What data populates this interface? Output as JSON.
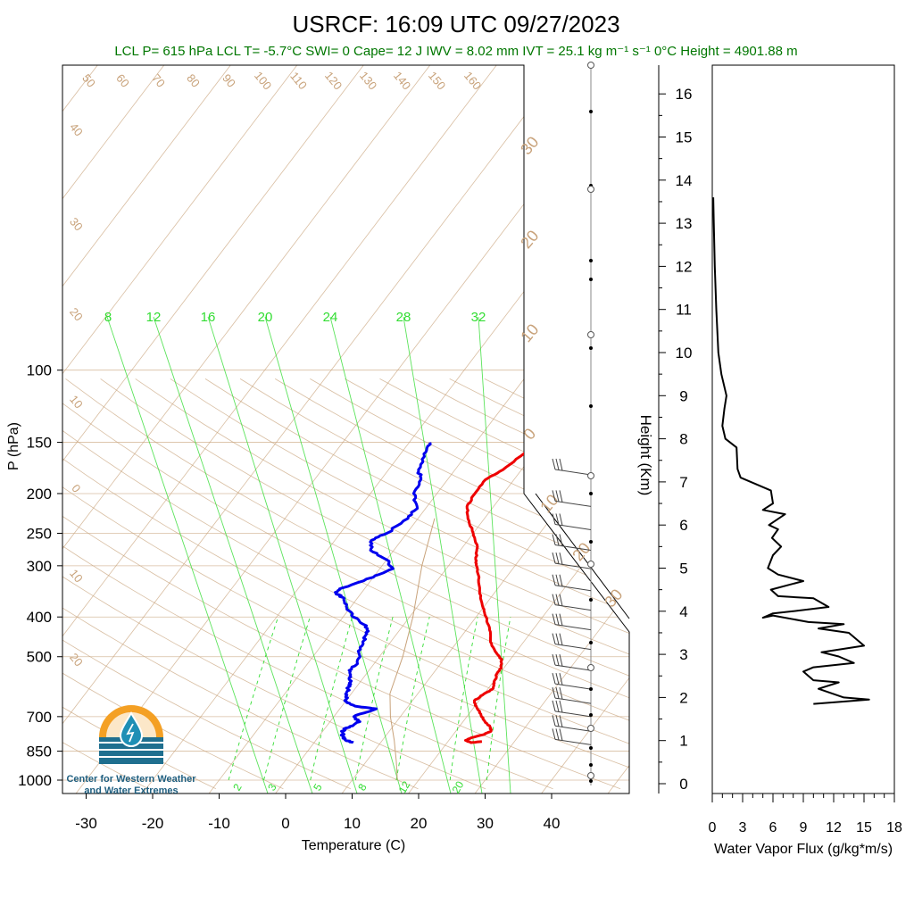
{
  "title": "USRCF: 16:09 UTC 09/27/2023",
  "subtitle": "LCL P= 615 hPa  LCL T= -5.7°C  SWI= 0  Cape= 12 J  IWV = 8.02 mm  IVT = 25.1 kg m⁻¹ s⁻¹  0°C Height = 4901.88 m",
  "colors": {
    "temperature": "#ee0000",
    "dewpoint": "#0000ee",
    "mixing_ratio": "#33dd33",
    "adiabat": "#c8a27a",
    "subtitle": "#007700"
  },
  "logo": {
    "line1": "Center for Western Weather",
    "line2": "and Water Extremes",
    "icon": "water-drop-sun-logo"
  },
  "chart_data": [
    {
      "type": "line",
      "subtype": "skew-t",
      "xlabel": "Temperature (C)",
      "ylabel": "P (hPa)",
      "x_ticks": [
        -30,
        -20,
        -10,
        0,
        10,
        20,
        30,
        40
      ],
      "y_ticks": [
        100,
        150,
        200,
        250,
        300,
        400,
        500,
        700,
        850,
        1000
      ],
      "mixing_ratio_labels_top": [
        "8",
        "12",
        "16",
        "20",
        "24",
        "28",
        "32"
      ],
      "mixing_ratio_labels_bottom": [
        "2",
        "3",
        "5",
        "8",
        "12",
        "20"
      ],
      "adiabat_labels_top": [
        "50",
        "60",
        "70",
        "80",
        "90",
        "100",
        "110",
        "120",
        "130",
        "140",
        "150",
        "160"
      ],
      "isotherm_labels_left": [
        "40",
        "30",
        "20",
        "10",
        "0",
        "10",
        "20"
      ],
      "isotherm_labels_right": [
        "30",
        "20",
        "10",
        "0",
        "10",
        "20",
        "30"
      ],
      "series": [
        {
          "name": "temperature",
          "points": [
            [
              150,
              -0.5
            ],
            [
              160,
              -1.5
            ],
            [
              175,
              -2.8
            ],
            [
              185,
              -4.3
            ],
            [
              200,
              -4.3
            ],
            [
              215,
              -4.0
            ],
            [
              230,
              -2.5
            ],
            [
              250,
              0.0
            ],
            [
              270,
              2.2
            ],
            [
              290,
              3.4
            ],
            [
              300,
              4.2
            ],
            [
              320,
              5.9
            ],
            [
              350,
              7.8
            ],
            [
              380,
              10.0
            ],
            [
              400,
              11.5
            ],
            [
              430,
              13.5
            ],
            [
              460,
              15.0
            ],
            [
              490,
              17.2
            ],
            [
              510,
              18.8
            ],
            [
              530,
              19.5
            ],
            [
              550,
              19.6
            ],
            [
              580,
              20.3
            ],
            [
              600,
              20.7
            ],
            [
              620,
              19.9
            ],
            [
              640,
              19.3
            ],
            [
              660,
              20.2
            ],
            [
              690,
              21.8
            ],
            [
              720,
              23.3
            ],
            [
              740,
              24.6
            ],
            [
              760,
              25.3
            ],
            [
              775,
              24.5
            ],
            [
              790,
              23.0
            ],
            [
              800,
              22.5
            ],
            [
              810,
              23.6
            ],
            [
              805,
              25.1
            ]
          ]
        },
        {
          "name": "dewpoint",
          "points": [
            [
              150,
              -16.9
            ],
            [
              160,
              -16.5
            ],
            [
              175,
              -15.5
            ],
            [
              185,
              -14.0
            ],
            [
              200,
              -13.5
            ],
            [
              215,
              -11.5
            ],
            [
              230,
              -11.5
            ],
            [
              250,
              -13.0
            ],
            [
              260,
              -14.5
            ],
            [
              275,
              -13.5
            ],
            [
              290,
              -10.0
            ],
            [
              305,
              -8.0
            ],
            [
              320,
              -10.0
            ],
            [
              340,
              -13.5
            ],
            [
              350,
              -13.8
            ],
            [
              360,
              -12.0
            ],
            [
              380,
              -10.5
            ],
            [
              400,
              -8.5
            ],
            [
              420,
              -5.5
            ],
            [
              440,
              -4.5
            ],
            [
              460,
              -4.2
            ],
            [
              490,
              -3.5
            ],
            [
              520,
              -2.5
            ],
            [
              540,
              -3.0
            ],
            [
              560,
              -2.0
            ],
            [
              580,
              -1.5
            ],
            [
              600,
              -1.0
            ],
            [
              620,
              -0.5
            ],
            [
              640,
              -0.2
            ],
            [
              660,
              2.0
            ],
            [
              670,
              5.5
            ],
            [
              700,
              3.0
            ],
            [
              720,
              4.5
            ],
            [
              740,
              3.5
            ],
            [
              760,
              2.8
            ],
            [
              780,
              3.6
            ],
            [
              800,
              4.5
            ],
            [
              810,
              5.9
            ]
          ]
        },
        {
          "name": "parcel",
          "points": [
            [
              230,
              -7.5
            ],
            [
              300,
              -4.0
            ],
            [
              400,
              0.5
            ],
            [
              500,
              3.5
            ],
            [
              615,
              5.8
            ],
            [
              700,
              8.5
            ],
            [
              800,
              11.8
            ],
            [
              900,
              14.5
            ],
            [
              1000,
              16.8
            ]
          ]
        }
      ],
      "wind_barbs_hPa": [
        180,
        215,
        245,
        275,
        305,
        345,
        385,
        430,
        480,
        540,
        600,
        650,
        700,
        760,
        820
      ],
      "height_axis_km": [
        0,
        1,
        2,
        3,
        4,
        5,
        6,
        7,
        8,
        9,
        10,
        11,
        12,
        13,
        14,
        15,
        16
      ]
    },
    {
      "type": "line",
      "xlabel": "Water Vapor Flux (g/kg*m/s)",
      "ylabel": "Height (Km)",
      "x_ticks": [
        0,
        3,
        6,
        9,
        12,
        15,
        18
      ],
      "y_ticks": [
        0,
        1,
        2,
        3,
        4,
        5,
        6,
        7,
        8,
        9,
        10,
        11,
        12,
        13,
        14,
        15,
        16
      ],
      "xlim": [
        0,
        18
      ],
      "ylim": [
        -0.3,
        16.5
      ],
      "series": [
        {
          "name": "water_vapor_flux",
          "points": [
            [
              10.0,
              1.85
            ],
            [
              15.5,
              1.95
            ],
            [
              13.0,
              2.0
            ],
            [
              10.5,
              2.2
            ],
            [
              12.5,
              2.35
            ],
            [
              10.0,
              2.4
            ],
            [
              9.0,
              2.6
            ],
            [
              10.0,
              2.7
            ],
            [
              14.0,
              2.8
            ],
            [
              12.5,
              2.95
            ],
            [
              10.8,
              3.05
            ],
            [
              15.0,
              3.2
            ],
            [
              13.5,
              3.5
            ],
            [
              10.5,
              3.6
            ],
            [
              13.0,
              3.7
            ],
            [
              9.5,
              3.75
            ],
            [
              6.0,
              3.9
            ],
            [
              5.0,
              3.85
            ],
            [
              6.0,
              3.95
            ],
            [
              8.0,
              4.0
            ],
            [
              11.5,
              4.1
            ],
            [
              10.0,
              4.3
            ],
            [
              6.5,
              4.35
            ],
            [
              5.8,
              4.5
            ],
            [
              9.0,
              4.7
            ],
            [
              6.5,
              4.85
            ],
            [
              5.5,
              5.0
            ],
            [
              6.0,
              5.3
            ],
            [
              6.8,
              5.5
            ],
            [
              5.9,
              5.7
            ],
            [
              6.5,
              5.9
            ],
            [
              5.6,
              6.0
            ],
            [
              7.2,
              6.25
            ],
            [
              5.0,
              6.35
            ],
            [
              6.0,
              6.5
            ],
            [
              5.8,
              6.8
            ],
            [
              2.8,
              7.1
            ],
            [
              2.5,
              7.3
            ],
            [
              2.4,
              7.8
            ],
            [
              1.3,
              8.0
            ],
            [
              1.0,
              8.3
            ],
            [
              1.2,
              8.7
            ],
            [
              1.4,
              9.0
            ],
            [
              0.9,
              9.5
            ],
            [
              0.6,
              10.0
            ],
            [
              0.4,
              11.0
            ],
            [
              0.25,
              12.0
            ],
            [
              0.15,
              13.0
            ],
            [
              0.1,
              13.6
            ]
          ]
        }
      ]
    }
  ]
}
